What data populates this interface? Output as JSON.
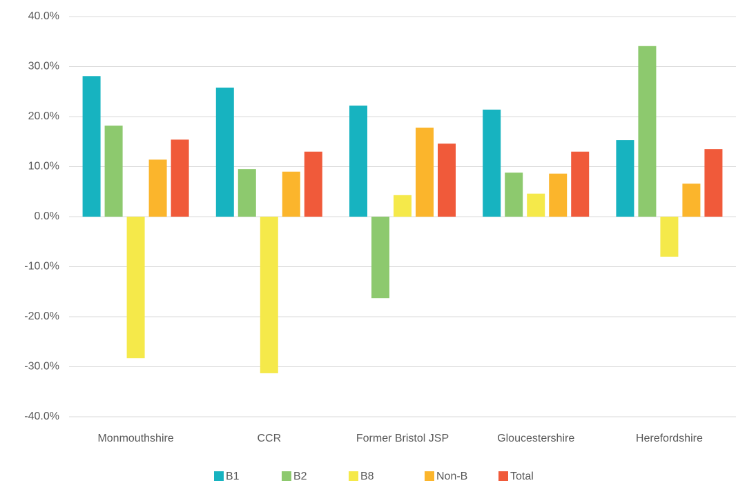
{
  "chart_data": {
    "type": "bar",
    "categories": [
      "Monmouthshire",
      "CCR",
      "Former Bristol JSP",
      "Gloucestershire",
      "Herefordshire"
    ],
    "series": [
      {
        "name": "B1",
        "color": "#17b3c0",
        "values": [
          28.1,
          25.8,
          22.2,
          21.4,
          15.3
        ]
      },
      {
        "name": "B2",
        "color": "#8dc96e",
        "values": [
          18.2,
          9.5,
          -16.3,
          8.8,
          34.1
        ]
      },
      {
        "name": "B8",
        "color": "#f5e94a",
        "values": [
          -28.3,
          -31.3,
          4.3,
          4.6,
          -8.0
        ]
      },
      {
        "name": "Non-B",
        "color": "#fbb52c",
        "values": [
          11.4,
          9.0,
          17.8,
          8.6,
          6.6
        ]
      },
      {
        "name": "Total",
        "color": "#f05a3a",
        "values": [
          15.4,
          13.0,
          14.6,
          13.0,
          13.5
        ]
      }
    ],
    "ylim": [
      -40,
      40
    ],
    "yticks": [
      {
        "value": -40,
        "label": "-40.0%"
      },
      {
        "value": -30,
        "label": "-30.0%"
      },
      {
        "value": -20,
        "label": "-20.0%"
      },
      {
        "value": -10,
        "label": "-10.0%"
      },
      {
        "value": 0,
        "label": "0.0%"
      },
      {
        "value": 10,
        "label": "10.0%"
      },
      {
        "value": 20,
        "label": "20.0%"
      },
      {
        "value": 30,
        "label": "30.0%"
      },
      {
        "value": 40,
        "label": "40.0%"
      }
    ],
    "grid": true,
    "legend": "bottom"
  }
}
